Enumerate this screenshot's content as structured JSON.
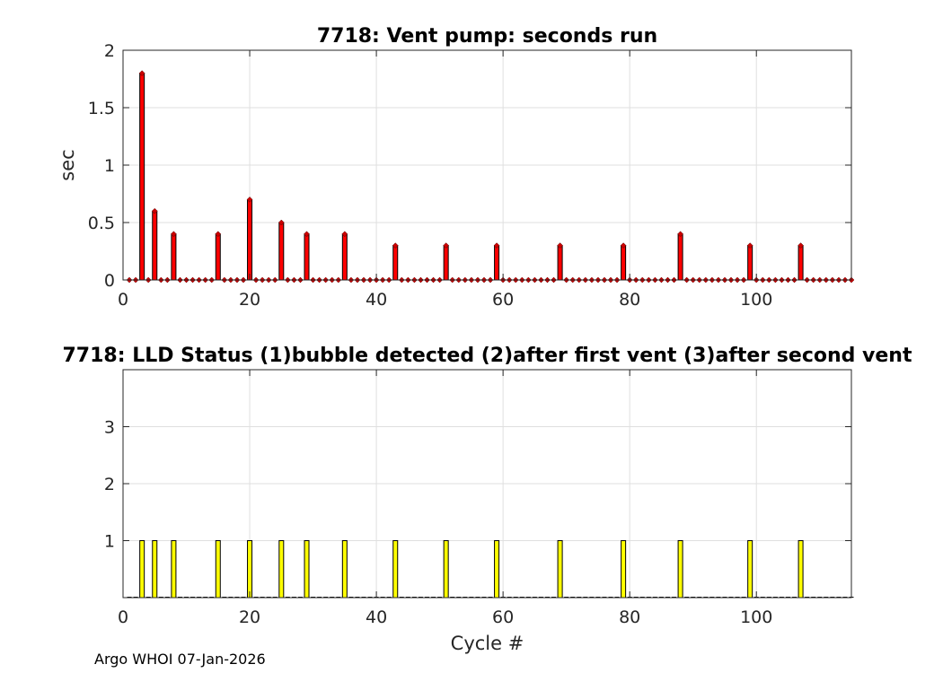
{
  "footer": "Argo WHOI 07-Jan-2026",
  "chart_data": [
    {
      "type": "bar",
      "title": "7718: Vent pump: seconds run",
      "xlabel": "",
      "ylabel": "sec",
      "xlim": [
        0,
        115
      ],
      "ylim": [
        0,
        2
      ],
      "xticks": [
        "0",
        "20",
        "40",
        "60",
        "80",
        "100"
      ],
      "yticks": [
        "0",
        "0.5",
        "1",
        "1.5",
        "2"
      ],
      "grid": true,
      "bar_color": "#ff0000",
      "marker_color": "#cc0000",
      "x": [
        1,
        2,
        3,
        4,
        5,
        6,
        7,
        8,
        9,
        10,
        11,
        12,
        13,
        14,
        15,
        16,
        17,
        18,
        19,
        20,
        21,
        22,
        23,
        24,
        25,
        26,
        27,
        28,
        29,
        30,
        31,
        32,
        33,
        34,
        35,
        36,
        37,
        38,
        39,
        40,
        41,
        42,
        43,
        44,
        45,
        46,
        47,
        48,
        49,
        50,
        51,
        52,
        53,
        54,
        55,
        56,
        57,
        58,
        59,
        60,
        61,
        62,
        63,
        64,
        65,
        66,
        67,
        68,
        69,
        70,
        71,
        72,
        73,
        74,
        75,
        76,
        77,
        78,
        79,
        80,
        81,
        82,
        83,
        84,
        85,
        86,
        87,
        88,
        89,
        90,
        91,
        92,
        93,
        94,
        95,
        96,
        97,
        98,
        99,
        100,
        101,
        102,
        103,
        104,
        105,
        106,
        107,
        108,
        109,
        110,
        111,
        112,
        113,
        114,
        115
      ],
      "values": [
        0,
        0,
        1.8,
        0,
        0.6,
        0,
        0,
        0.4,
        0,
        0,
        0,
        0,
        0,
        0,
        0.4,
        0,
        0,
        0,
        0,
        0.7,
        0,
        0,
        0,
        0,
        0.5,
        0,
        0,
        0,
        0.4,
        0,
        0,
        0,
        0,
        0,
        0.4,
        0,
        0,
        0,
        0,
        0,
        0,
        0,
        0.3,
        0,
        0,
        0,
        0,
        0,
        0,
        0,
        0.3,
        0,
        0,
        0,
        0,
        0,
        0,
        0,
        0.3,
        0,
        0,
        0,
        0,
        0,
        0,
        0,
        0,
        0,
        0.3,
        0,
        0,
        0,
        0,
        0,
        0,
        0,
        0,
        0,
        0.3,
        0,
        0,
        0,
        0,
        0,
        0,
        0,
        0,
        0.4,
        0,
        0,
        0,
        0,
        0,
        0,
        0,
        0,
        0,
        0,
        0.3,
        0,
        0,
        0,
        0,
        0,
        0,
        0,
        0.3,
        0,
        0,
        0,
        0,
        0,
        0,
        0,
        0
      ]
    },
    {
      "type": "bar",
      "title": "7718: LLD Status   (1)bubble detected   (2)after first vent  (3)after second vent",
      "xlabel": "Cycle #",
      "ylabel": "",
      "xlim": [
        0,
        115
      ],
      "ylim": [
        0,
        4
      ],
      "xticks": [
        "0",
        "20",
        "40",
        "60",
        "80",
        "100"
      ],
      "yticks": [
        "1",
        "2",
        "3"
      ],
      "grid": true,
      "bar_color": "#ffff00",
      "x": [
        1,
        2,
        3,
        4,
        5,
        6,
        7,
        8,
        9,
        10,
        11,
        12,
        13,
        14,
        15,
        16,
        17,
        18,
        19,
        20,
        21,
        22,
        23,
        24,
        25,
        26,
        27,
        28,
        29,
        30,
        31,
        32,
        33,
        34,
        35,
        36,
        37,
        38,
        39,
        40,
        41,
        42,
        43,
        44,
        45,
        46,
        47,
        48,
        49,
        50,
        51,
        52,
        53,
        54,
        55,
        56,
        57,
        58,
        59,
        60,
        61,
        62,
        63,
        64,
        65,
        66,
        67,
        68,
        69,
        70,
        71,
        72,
        73,
        74,
        75,
        76,
        77,
        78,
        79,
        80,
        81,
        82,
        83,
        84,
        85,
        86,
        87,
        88,
        89,
        90,
        91,
        92,
        93,
        94,
        95,
        96,
        97,
        98,
        99,
        100,
        101,
        102,
        103,
        104,
        105,
        106,
        107,
        108,
        109,
        110,
        111,
        112,
        113,
        114,
        115
      ],
      "values": [
        0,
        0,
        1,
        0,
        1,
        0,
        0,
        1,
        0,
        0,
        0,
        0,
        0,
        0,
        1,
        0,
        0,
        0,
        0,
        1,
        0,
        0,
        0,
        0,
        1,
        0,
        0,
        0,
        1,
        0,
        0,
        0,
        0,
        0,
        1,
        0,
        0,
        0,
        0,
        0,
        0,
        0,
        1,
        0,
        0,
        0,
        0,
        0,
        0,
        0,
        1,
        0,
        0,
        0,
        0,
        0,
        0,
        0,
        1,
        0,
        0,
        0,
        0,
        0,
        0,
        0,
        0,
        0,
        1,
        0,
        0,
        0,
        0,
        0,
        0,
        0,
        0,
        0,
        1,
        0,
        0,
        0,
        0,
        0,
        0,
        0,
        0,
        1,
        0,
        0,
        0,
        0,
        0,
        0,
        0,
        0,
        0,
        0,
        1,
        0,
        0,
        0,
        0,
        0,
        0,
        0,
        1,
        0,
        0,
        0,
        0,
        0,
        0,
        0,
        0
      ]
    }
  ]
}
